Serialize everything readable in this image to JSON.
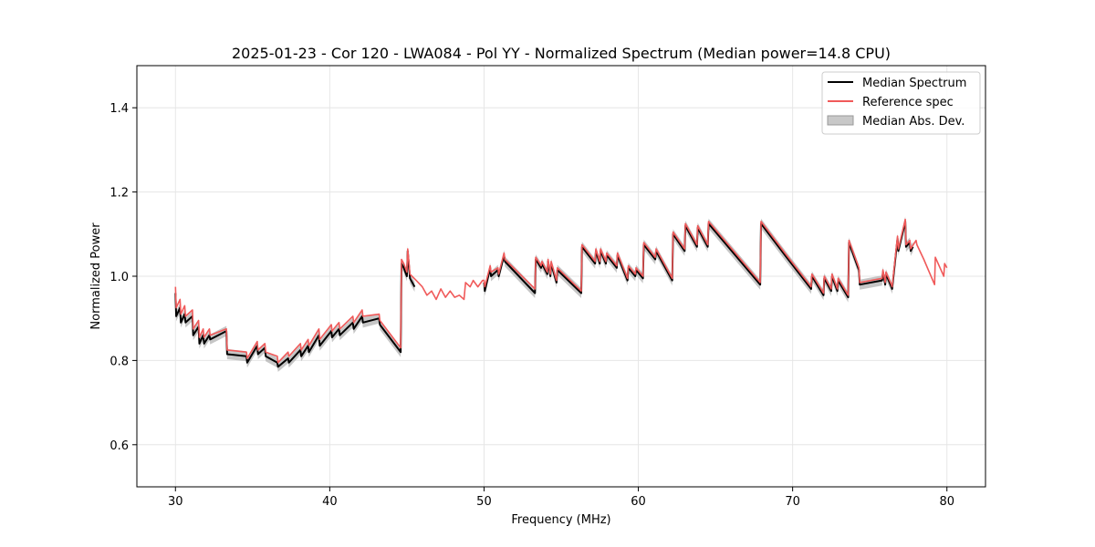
{
  "chart_data": {
    "type": "line",
    "title": "2025-01-23 - Cor 120 - LWA084 - Pol YY - Normalized Spectrum (Median power=14.8 CPU)",
    "xlabel": "Frequency (MHz)",
    "ylabel": "Normalized Power",
    "xlim": [
      27.5,
      82.5
    ],
    "ylim": [
      0.5,
      1.5
    ],
    "xticks": [
      30,
      40,
      50,
      60,
      70,
      80
    ],
    "yticks": [
      0.6,
      0.8,
      1.0,
      1.2,
      1.4
    ],
    "xtick_labels": [
      "30",
      "40",
      "50",
      "60",
      "70",
      "80"
    ],
    "ytick_labels": [
      "0.6",
      "0.8",
      "1.0",
      "1.2",
      "1.4"
    ],
    "grid": true,
    "legend_position": "top-right",
    "colors": {
      "median": "#000000",
      "reference": "#f05a5a",
      "mad": "#b3b3b3"
    },
    "series": [
      {
        "name": "Median Spectrum",
        "role": "median",
        "x": [
          30.0,
          30.05,
          30.3,
          30.35,
          30.6,
          30.65,
          31.1,
          31.15,
          31.5,
          31.55,
          31.8,
          31.85,
          32.2,
          32.25,
          33.3,
          33.35,
          34.6,
          34.65,
          35.3,
          35.35,
          35.8,
          35.85,
          36.6,
          36.65,
          37.3,
          37.35,
          38.1,
          38.15,
          38.6,
          38.65,
          39.3,
          39.35,
          40.1,
          40.15,
          40.6,
          40.65,
          41.5,
          41.55,
          42.1,
          42.15,
          43.2,
          43.25,
          44.6,
          44.65,
          44.8,
          45.0,
          45.05,
          45.2,
          45.5
        ],
        "y": [
          0.96,
          0.905,
          0.925,
          0.89,
          0.91,
          0.89,
          0.905,
          0.86,
          0.88,
          0.84,
          0.86,
          0.84,
          0.86,
          0.85,
          0.87,
          0.815,
          0.81,
          0.795,
          0.835,
          0.815,
          0.83,
          0.81,
          0.795,
          0.785,
          0.805,
          0.795,
          0.825,
          0.81,
          0.835,
          0.82,
          0.86,
          0.835,
          0.87,
          0.855,
          0.875,
          0.86,
          0.89,
          0.875,
          0.905,
          0.89,
          0.9,
          0.885,
          0.82,
          1.03,
          1.02,
          1.0,
          1.06,
          0.995,
          0.975
        ],
        "segment2_x": [
          50.0,
          50.05,
          50.4,
          50.45,
          50.9,
          50.95,
          51.3,
          51.35,
          53.3,
          53.35,
          53.7,
          53.75,
          54.1,
          54.15,
          54.3,
          54.35,
          54.7,
          54.75,
          56.3,
          56.35,
          57.2,
          57.25,
          57.5,
          57.55,
          57.9,
          57.95,
          58.6,
          58.65,
          59.3,
          59.35,
          59.8,
          59.85,
          60.3,
          60.35,
          61.1,
          61.15,
          62.2,
          62.25,
          63.0,
          63.05,
          63.8,
          63.85,
          64.5,
          64.55,
          67.9,
          67.95,
          69.5,
          71.2,
          71.25,
          72.0,
          72.05,
          72.5,
          72.55,
          72.9,
          72.95,
          73.6,
          73.65,
          74.3,
          74.35,
          75.8,
          75.85,
          76.0,
          76.05,
          76.4,
          76.45,
          76.8,
          76.85,
          77.3,
          77.35,
          77.6,
          77.65,
          77.8
        ],
        "segment2_y": [
          0.985,
          0.965,
          1.02,
          1.0,
          1.015,
          1.0,
          1.05,
          1.035,
          0.96,
          1.04,
          1.02,
          1.03,
          1.005,
          1.035,
          1.0,
          1.03,
          0.985,
          1.015,
          0.96,
          1.07,
          1.03,
          1.06,
          1.03,
          1.06,
          1.03,
          1.05,
          1.02,
          1.05,
          0.99,
          1.02,
          1.0,
          1.015,
          0.995,
          1.075,
          1.04,
          1.06,
          0.99,
          1.1,
          1.06,
          1.12,
          1.07,
          1.115,
          1.07,
          1.125,
          0.98,
          1.125,
          1.05,
          0.97,
          1.0,
          0.955,
          0.995,
          0.965,
          1.0,
          0.965,
          0.99,
          0.95,
          1.08,
          1.015,
          0.98,
          0.99,
          1.01,
          0.98,
          1.005,
          0.975,
          0.97,
          1.09,
          1.06,
          1.13,
          1.07,
          1.08,
          1.06,
          1.07
        ]
      },
      {
        "name": "Reference spec",
        "role": "reference",
        "x": [
          30.0,
          30.05,
          30.3,
          30.35,
          30.6,
          30.65,
          31.1,
          31.15,
          31.5,
          31.55,
          31.8,
          31.85,
          32.2,
          32.25,
          33.3,
          33.35,
          34.6,
          34.65,
          35.3,
          35.35,
          35.8,
          35.85,
          36.6,
          36.65,
          37.3,
          37.35,
          38.1,
          38.15,
          38.6,
          38.65,
          39.3,
          39.35,
          40.1,
          40.15,
          40.6,
          40.65,
          41.5,
          41.55,
          42.1,
          42.15,
          43.2,
          43.25,
          44.6,
          44.65,
          44.8,
          45.0,
          45.05,
          45.2,
          45.6,
          46.0,
          46.3,
          46.6,
          46.9,
          47.2,
          47.5,
          47.8,
          48.1,
          48.4,
          48.7,
          48.8,
          49.1,
          49.3,
          49.6,
          49.9,
          50.0,
          50.05,
          50.4,
          50.45,
          50.9,
          50.95,
          51.3,
          51.35,
          53.3,
          53.35,
          53.7,
          53.75,
          54.1,
          54.15,
          54.3,
          54.35,
          54.7,
          54.75,
          56.3,
          56.35,
          57.2,
          57.25,
          57.5,
          57.55,
          57.9,
          57.95,
          58.6,
          58.65,
          59.3,
          59.35,
          59.8,
          59.85,
          60.3,
          60.35,
          61.1,
          61.15,
          62.2,
          62.25,
          63.0,
          63.05,
          63.8,
          63.85,
          64.5,
          64.55,
          67.9,
          67.95,
          69.5,
          71.2,
          71.25,
          72.0,
          72.05,
          72.5,
          72.55,
          72.9,
          72.95,
          73.6,
          73.65,
          74.3,
          74.35,
          75.8,
          75.85,
          76.0,
          76.05,
          76.4,
          76.45,
          76.8,
          76.85,
          77.3,
          77.35,
          77.6,
          77.65,
          78.0,
          78.05,
          78.5,
          79.2,
          79.25,
          79.8,
          79.85,
          80.0
        ],
        "y": [
          0.975,
          0.925,
          0.945,
          0.91,
          0.93,
          0.905,
          0.92,
          0.875,
          0.895,
          0.855,
          0.875,
          0.855,
          0.875,
          0.86,
          0.875,
          0.825,
          0.82,
          0.805,
          0.845,
          0.825,
          0.84,
          0.82,
          0.81,
          0.795,
          0.82,
          0.81,
          0.84,
          0.825,
          0.85,
          0.835,
          0.875,
          0.85,
          0.885,
          0.87,
          0.89,
          0.875,
          0.905,
          0.89,
          0.92,
          0.905,
          0.91,
          0.895,
          0.83,
          1.04,
          1.03,
          1.01,
          1.065,
          1.005,
          0.99,
          0.975,
          0.955,
          0.965,
          0.945,
          0.97,
          0.95,
          0.965,
          0.95,
          0.955,
          0.945,
          0.985,
          0.975,
          0.99,
          0.975,
          0.99,
          0.99,
          0.975,
          1.025,
          1.01,
          1.02,
          1.005,
          1.055,
          1.04,
          0.97,
          1.045,
          1.025,
          1.035,
          1.01,
          1.04,
          1.005,
          1.035,
          0.99,
          1.02,
          0.965,
          1.075,
          1.035,
          1.065,
          1.035,
          1.065,
          1.035,
          1.055,
          1.025,
          1.055,
          0.995,
          1.025,
          1.005,
          1.02,
          1.0,
          1.08,
          1.045,
          1.065,
          0.995,
          1.105,
          1.065,
          1.125,
          1.075,
          1.12,
          1.075,
          1.13,
          0.985,
          1.13,
          1.055,
          0.975,
          1.005,
          0.96,
          1.0,
          0.97,
          1.005,
          0.97,
          0.995,
          0.955,
          1.085,
          1.02,
          0.985,
          0.995,
          1.015,
          0.985,
          1.01,
          0.98,
          0.975,
          1.095,
          1.065,
          1.135,
          1.075,
          1.085,
          1.065,
          1.085,
          1.075,
          1.04,
          0.98,
          1.045,
          1.0,
          1.03,
          1.02
        ]
      }
    ],
    "band": {
      "name": "Median Abs. Dev.",
      "role": "mad",
      "halfwidth": 0.012
    }
  }
}
